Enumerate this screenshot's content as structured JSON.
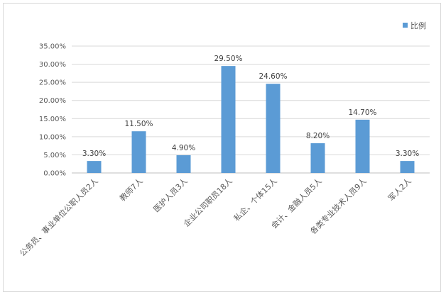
{
  "chart_data": {
    "type": "bar",
    "categories": [
      "公务员、事业单位公职人员2人",
      "教师7人",
      "医护人员3人",
      "企业公司职员18人",
      "私企、个体15人",
      "会计、金融人员5人",
      "各类专业技术人员9人",
      "军人2人"
    ],
    "series": [
      {
        "name": "比例",
        "values": [
          3.3,
          11.5,
          4.9,
          29.5,
          24.6,
          8.2,
          14.7,
          3.3
        ],
        "labels": [
          "3.30%",
          "11.50%",
          "4.90%",
          "29.50%",
          "24.60%",
          "8.20%",
          "14.70%",
          "3.30%"
        ],
        "color": "#5b9bd5"
      }
    ],
    "y_ticks": [
      "0.00%",
      "5.00%",
      "10.00%",
      "15.00%",
      "20.00%",
      "25.00%",
      "30.00%",
      "35.00%"
    ],
    "ylim": [
      0,
      35
    ],
    "grid": true,
    "legend_position": "top-right",
    "title": "",
    "xlabel": "",
    "ylabel": ""
  }
}
